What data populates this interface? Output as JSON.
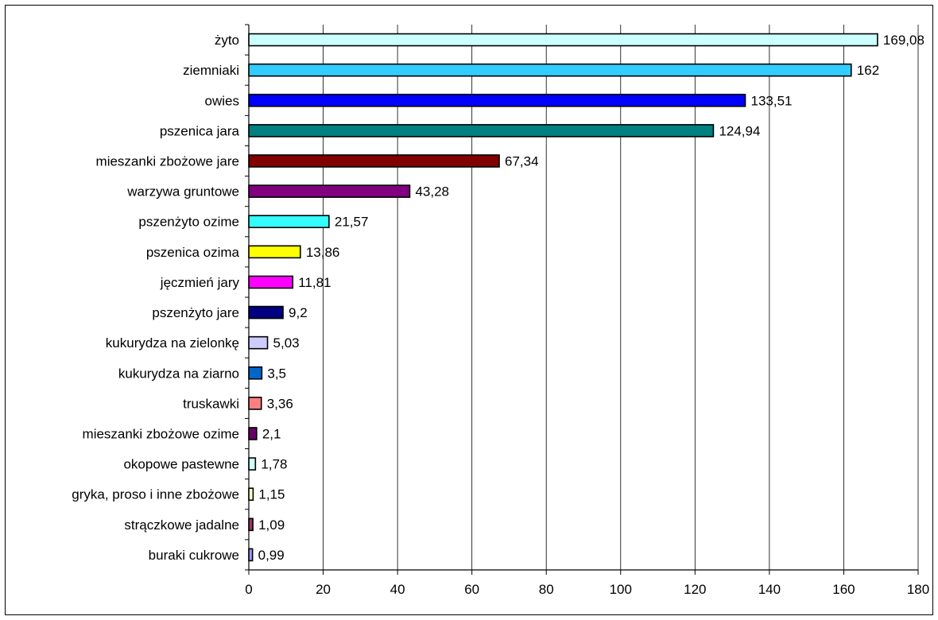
{
  "chart_data": {
    "type": "bar",
    "orientation": "horizontal",
    "title": "",
    "xlabel": "",
    "ylabel": "",
    "xlim": [
      0,
      180
    ],
    "x_ticks": [
      0,
      20,
      40,
      60,
      80,
      100,
      120,
      140,
      160,
      180
    ],
    "grid": "vertical",
    "legend": "none",
    "categories": [
      "żyto",
      "ziemniaki",
      "owies",
      "pszenica jara",
      "mieszanki zbożowe jare",
      "warzywa gruntowe",
      "pszenżyto ozime",
      "pszenica ozima",
      "jęczmień jary",
      "pszenżyto jare",
      "kukurydza na zielonkę",
      "kukurydza na ziarno",
      "truskawki",
      "mieszanki zbożowe ozime",
      "okopowe pastewne",
      "gryka, proso i inne zbożowe",
      "strączkowe jadalne",
      "buraki cukrowe"
    ],
    "values": [
      169.08,
      162,
      133.51,
      124.94,
      67.34,
      43.28,
      21.57,
      13.86,
      11.81,
      9.2,
      5.03,
      3.5,
      3.36,
      2.1,
      1.78,
      1.15,
      1.09,
      0.99
    ],
    "value_labels": [
      "169,08",
      "162",
      "133,51",
      "124,94",
      "67,34",
      "43,28",
      "21,57",
      "13,86",
      "11,81",
      "9,2",
      "5,03",
      "3,5",
      "3,36",
      "2,1",
      "1,78",
      "1,15",
      "1,09",
      "0,99"
    ],
    "colors": [
      "#CCFFFF",
      "#33CCFF",
      "#0000FF",
      "#008080",
      "#800000",
      "#800080",
      "#33FFFF",
      "#FFFF00",
      "#FF00FF",
      "#000080",
      "#CCCCFF",
      "#0066CC",
      "#FF8080",
      "#660066",
      "#CCFFFF",
      "#FFFFCC",
      "#993366",
      "#9999FF"
    ]
  }
}
